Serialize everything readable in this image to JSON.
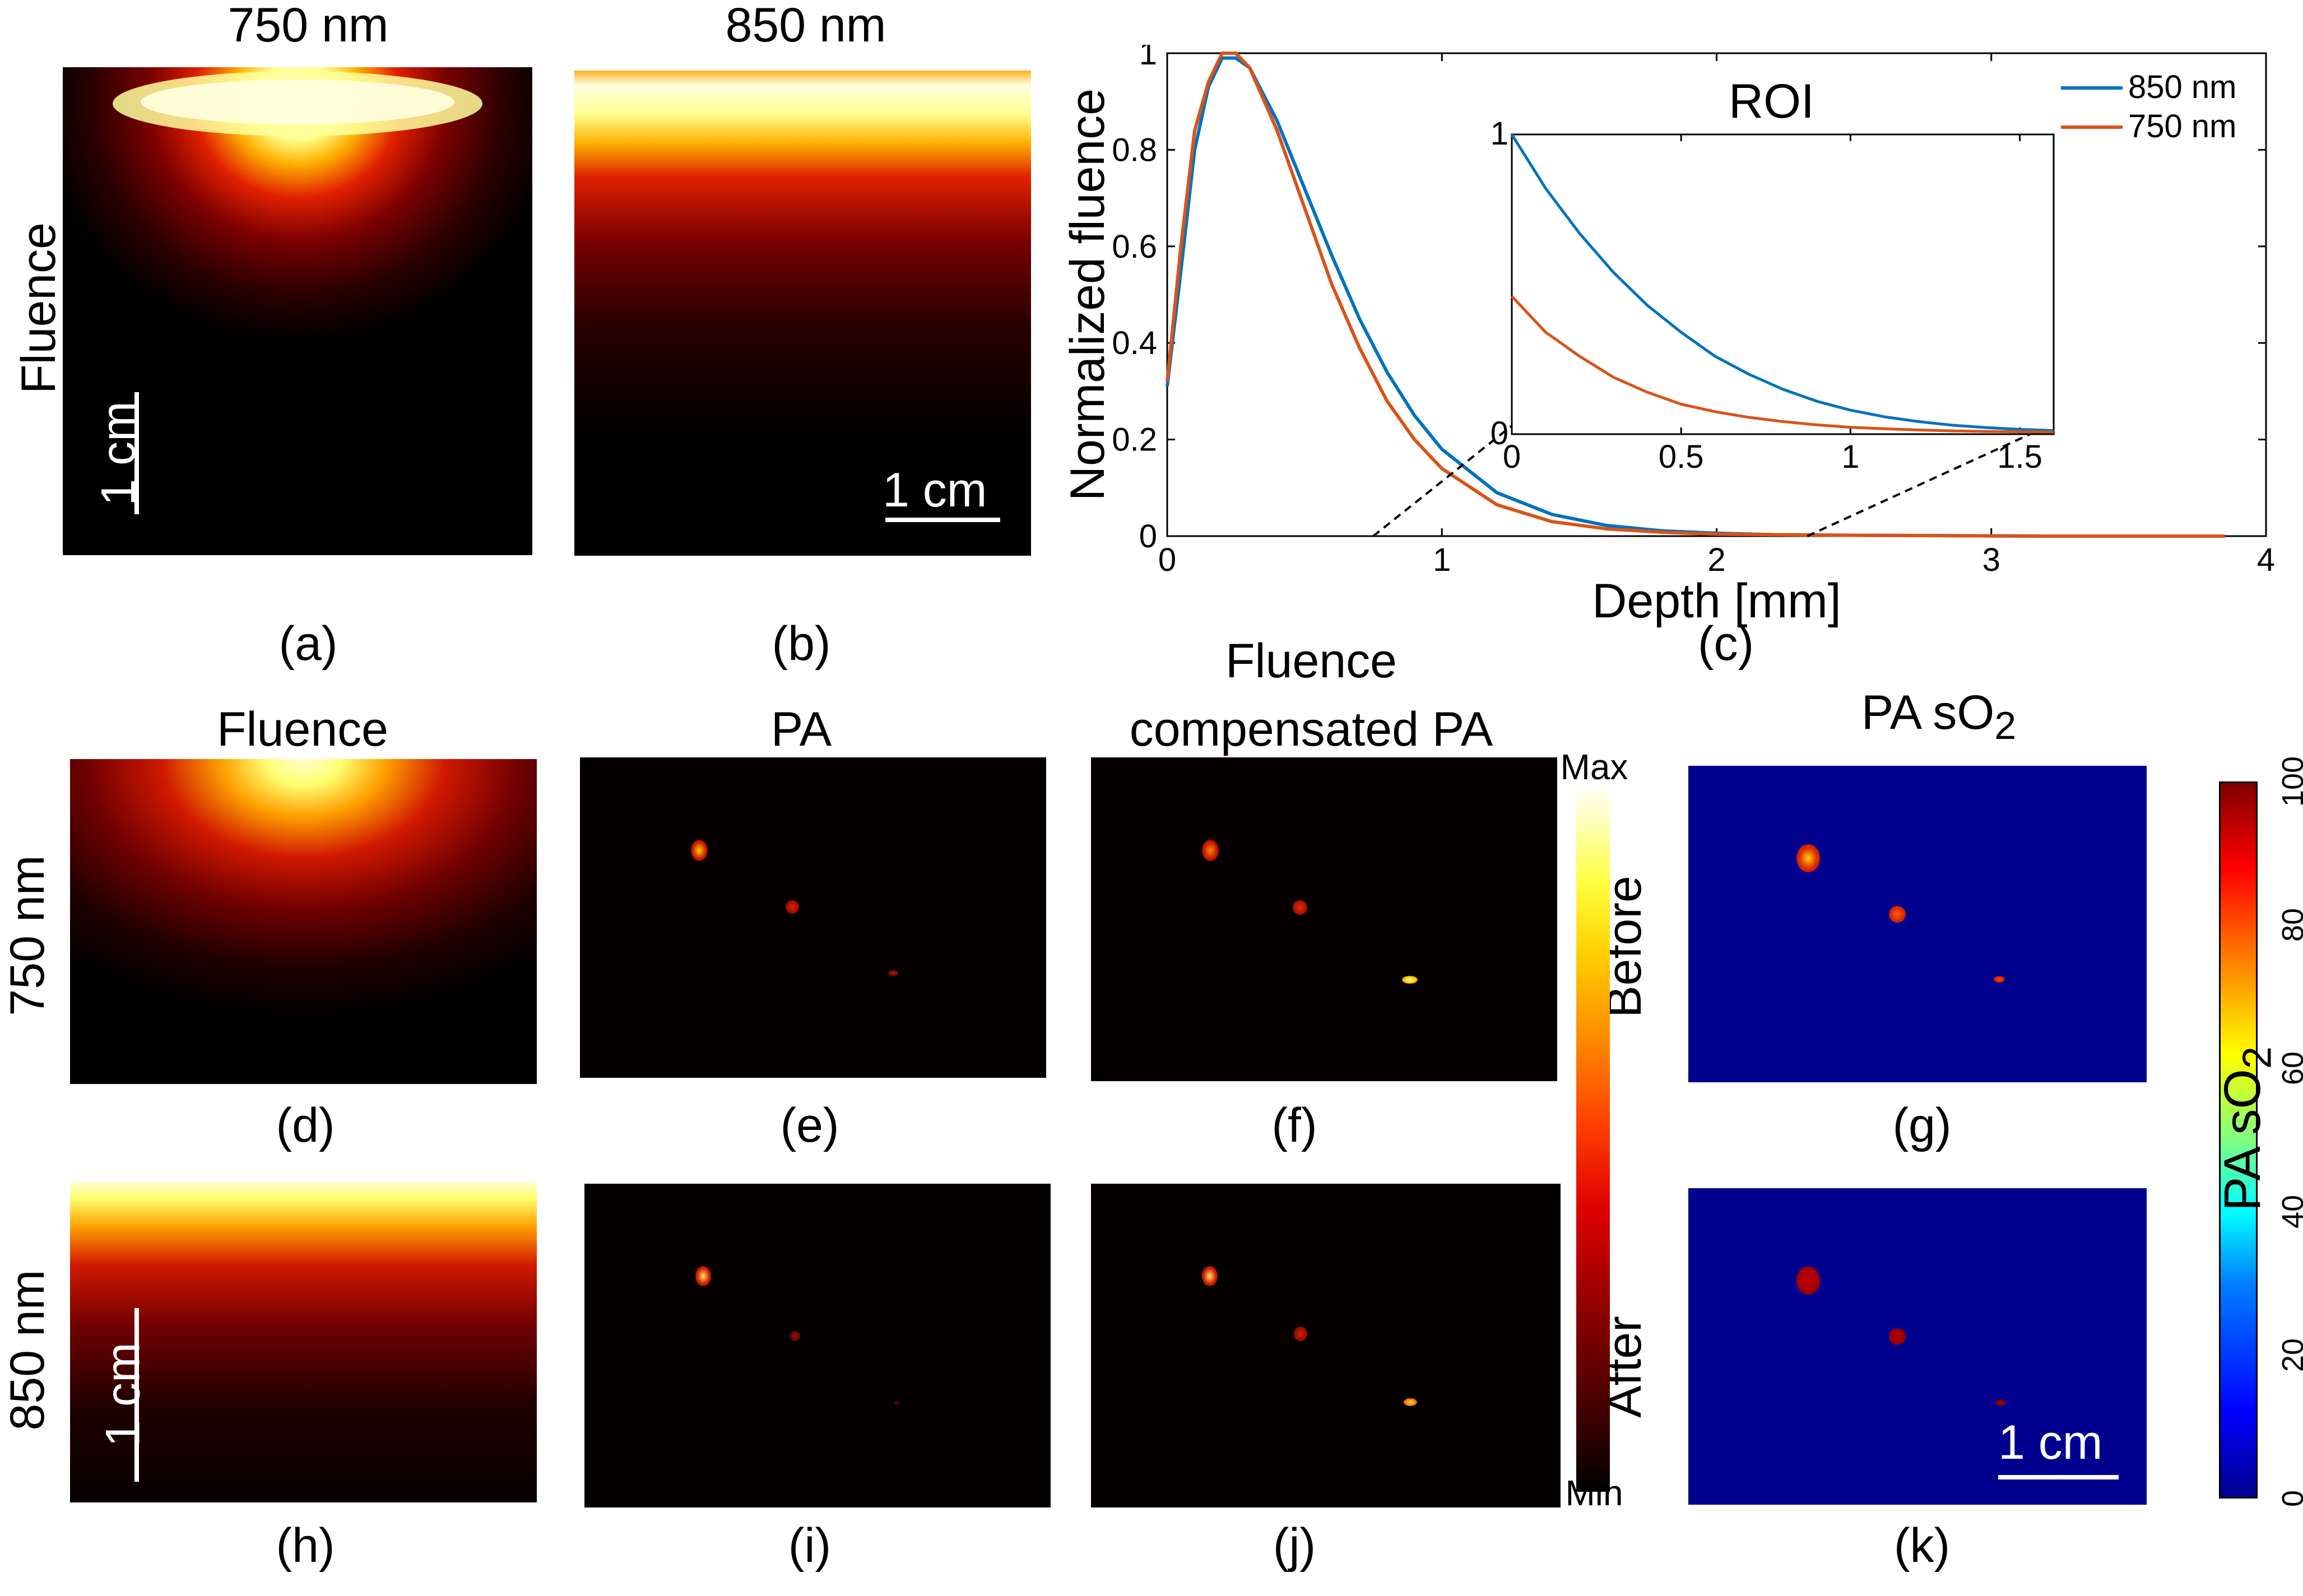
{
  "top": {
    "title_a": "750 nm",
    "title_b": "850 nm",
    "row_label": "Fluence",
    "scale_a": "1 cm",
    "scale_b": "1 cm",
    "cap_a": "(a)",
    "cap_b": "(b)",
    "cap_c": "(c)"
  },
  "bottom": {
    "col_fluence": "Fluence",
    "col_pa": "PA",
    "col_comp_line1": "Fluence",
    "col_comp_line2": "compensated PA",
    "col_so2_main": "PA sO",
    "col_so2_sub": "2",
    "row_750": "750 nm",
    "row_850": "850 nm",
    "before": "Before",
    "after": "After",
    "scale_h": "1 cm",
    "scale_k": "1 cm",
    "caps": [
      "(d)",
      "(e)",
      "(f)",
      "(g)",
      "(h)",
      "(i)",
      "(j)",
      "(k)"
    ]
  },
  "colorbar_hot": {
    "max_label": "Max",
    "min_label": "Min"
  },
  "colorbar_jet": {
    "label_main": "PA sO",
    "label_sub": "2",
    "ticks": [
      "0",
      "20",
      "40",
      "60",
      "80",
      "100"
    ]
  },
  "colors": {
    "series_850": "#0072bd",
    "series_750": "#d95319",
    "so2_background": "#00008f"
  },
  "chart_data": [
    {
      "type": "line",
      "title": "",
      "xlabel": "Depth [mm]",
      "ylabel": "Normalized fluence",
      "xlim": [
        0,
        4
      ],
      "ylim": [
        0,
        1
      ],
      "xticks": [
        "0",
        "1",
        "2",
        "3",
        "4"
      ],
      "yticks": [
        "0",
        "0.2",
        "0.4",
        "0.6",
        "0.8",
        "1"
      ],
      "legend": "top-right",
      "series": [
        {
          "name": "850 nm",
          "color": "#0072bd",
          "x": [
            0,
            0.05,
            0.1,
            0.15,
            0.2,
            0.25,
            0.3,
            0.4,
            0.5,
            0.6,
            0.7,
            0.8,
            0.9,
            1.0,
            1.2,
            1.4,
            1.6,
            1.8,
            2.0,
            2.2,
            2.4,
            2.8,
            3.2
          ],
          "y": [
            0.31,
            0.55,
            0.8,
            0.93,
            0.99,
            0.99,
            0.97,
            0.86,
            0.72,
            0.58,
            0.45,
            0.34,
            0.25,
            0.18,
            0.09,
            0.045,
            0.022,
            0.011,
            0.006,
            0.003,
            0.002,
            0.001,
            0.0
          ]
        },
        {
          "name": "750 nm",
          "color": "#d95319",
          "x": [
            0,
            0.05,
            0.1,
            0.15,
            0.2,
            0.25,
            0.3,
            0.4,
            0.5,
            0.6,
            0.7,
            0.8,
            0.9,
            1.0,
            1.2,
            1.4,
            1.6,
            1.8,
            2.0,
            2.4,
            2.8,
            3.2,
            3.6,
            3.85
          ],
          "y": [
            0.32,
            0.6,
            0.84,
            0.94,
            1.0,
            1.0,
            0.97,
            0.84,
            0.68,
            0.52,
            0.39,
            0.28,
            0.2,
            0.14,
            0.065,
            0.03,
            0.015,
            0.008,
            0.004,
            0.002,
            0.001,
            0.0,
            0.0,
            0.0
          ]
        }
      ]
    },
    {
      "type": "line",
      "title": "ROI",
      "xlim": [
        0,
        1.6
      ],
      "ylim": [
        0,
        1
      ],
      "xticks": [
        "0",
        "0.5",
        "1",
        "1.5"
      ],
      "yticks": [
        "0",
        "1"
      ],
      "series": [
        {
          "name": "850 nm",
          "color": "#0072bd",
          "x": [
            0,
            0.1,
            0.2,
            0.3,
            0.4,
            0.5,
            0.6,
            0.7,
            0.8,
            0.9,
            1.0,
            1.1,
            1.2,
            1.3,
            1.4,
            1.5,
            1.6
          ],
          "y": [
            1.0,
            0.82,
            0.67,
            0.54,
            0.43,
            0.34,
            0.26,
            0.2,
            0.15,
            0.11,
            0.08,
            0.058,
            0.042,
            0.03,
            0.022,
            0.016,
            0.012
          ]
        },
        {
          "name": "750 nm",
          "color": "#d95319",
          "x": [
            0,
            0.1,
            0.2,
            0.3,
            0.4,
            0.5,
            0.6,
            0.7,
            0.8,
            0.9,
            1.0,
            1.1,
            1.2,
            1.3,
            1.4,
            1.5,
            1.6
          ],
          "y": [
            0.46,
            0.34,
            0.26,
            0.19,
            0.14,
            0.1,
            0.075,
            0.056,
            0.042,
            0.031,
            0.023,
            0.018,
            0.014,
            0.011,
            0.009,
            0.008,
            0.007
          ]
        }
      ]
    }
  ]
}
